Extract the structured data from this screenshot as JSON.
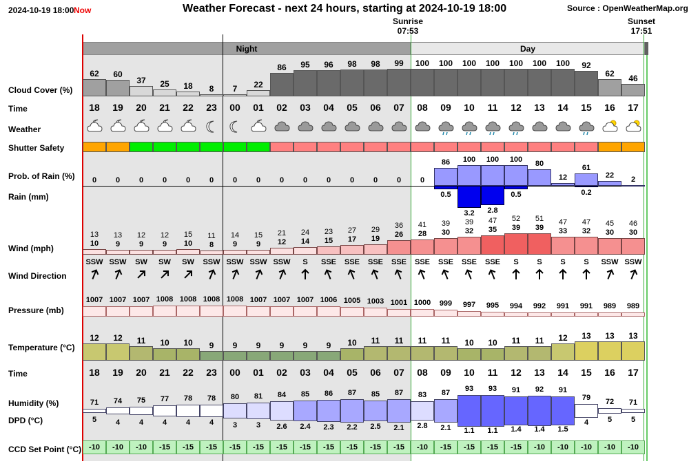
{
  "header": {
    "datetime": "2024-10-19 18:00",
    "now": "Now",
    "title": "Weather Forecast - next 24 hours, starting at 2024-10-19 18:00",
    "source": "Source : OpenWeatherMap.org",
    "sunrise_label": "Sunrise",
    "sunrise_time": "07:53",
    "sunset_label": "Sunset",
    "sunset_time": "17:51",
    "night_label": "Night",
    "day_label": "Day"
  },
  "labels": {
    "cloud": "Cloud Cover (%)",
    "time": "Time",
    "weather": "Weather",
    "shutter": "Shutter Safety",
    "prob": "Prob. of Rain (%)",
    "rain": "Rain (mm)",
    "wind": "Wind (mph)",
    "winddir": "Wind Direction",
    "pressure": "Pressure (mb)",
    "temp": "Temperature (°C)",
    "time2": "Time",
    "humidity": "Humidity (%)",
    "dpd": "DPD (°C)",
    "ccd": "CCD Set Point (°C)"
  },
  "colors": {
    "safe": "#00ee00",
    "warn": "#ffa500",
    "unsafe": "#ff8080",
    "cloud": "#6a6a6a",
    "night": "#e5e5e5"
  },
  "hours": [
    "18",
    "19",
    "20",
    "21",
    "22",
    "23",
    "00",
    "01",
    "02",
    "03",
    "04",
    "05",
    "06",
    "07",
    "08",
    "09",
    "10",
    "11",
    "12",
    "13",
    "14",
    "15",
    "16",
    "17"
  ],
  "cloud": [
    62,
    60,
    37,
    25,
    18,
    8,
    7,
    22,
    86,
    95,
    96,
    98,
    98,
    99,
    100,
    100,
    100,
    100,
    100,
    100,
    100,
    92,
    62,
    46
  ],
  "weather_icons": [
    "partly-cloudy-night-icon",
    "partly-cloudy-night-icon",
    "partly-cloudy-night-icon",
    "partly-cloudy-night-icon",
    "partly-cloudy-night-icon",
    "moon-icon",
    "moon-icon",
    "partly-cloudy-night-icon",
    "cloud-icon",
    "cloud-icon",
    "cloud-icon",
    "cloud-icon",
    "cloud-icon",
    "cloud-icon",
    "cloud-icon",
    "rain-icon",
    "rain-icon",
    "rain-icon",
    "rain-icon",
    "cloud-icon",
    "cloud-icon",
    "rain-icon",
    "partly-sunny-icon",
    "partly-sunny-icon"
  ],
  "shutter": [
    "warn",
    "warn",
    "safe",
    "safe",
    "safe",
    "safe",
    "safe",
    "safe",
    "unsafe",
    "unsafe",
    "unsafe",
    "unsafe",
    "unsafe",
    "unsafe",
    "unsafe",
    "unsafe",
    "unsafe",
    "unsafe",
    "unsafe",
    "unsafe",
    "unsafe",
    "unsafe",
    "warn",
    "warn"
  ],
  "prob_rain": [
    0,
    0,
    0,
    0,
    0,
    0,
    0,
    0,
    0,
    0,
    0,
    0,
    0,
    0,
    0,
    86,
    100,
    100,
    100,
    80,
    12,
    61,
    22,
    2
  ],
  "rain_mm": [
    null,
    null,
    null,
    null,
    null,
    null,
    null,
    null,
    null,
    null,
    null,
    null,
    null,
    null,
    null,
    "0.5",
    "3.2",
    "2.8",
    "0.5",
    null,
    null,
    "0.2",
    null,
    null
  ],
  "wind_gust": [
    13,
    13,
    12,
    12,
    15,
    11,
    14,
    15,
    21,
    24,
    23,
    27,
    29,
    36,
    41,
    39,
    39,
    47,
    52,
    51,
    47,
    47,
    45,
    46
  ],
  "wind_speed": [
    10,
    9,
    9,
    9,
    10,
    8,
    9,
    9,
    12,
    14,
    15,
    17,
    19,
    26,
    28,
    30,
    32,
    35,
    39,
    39,
    33,
    32,
    30,
    30
  ],
  "wind_dir": [
    "SSW",
    "SSW",
    "SW",
    "SW",
    "SW",
    "SSW",
    "SSW",
    "SSW",
    "SSW",
    "S",
    "SSE",
    "SSE",
    "SSE",
    "SSE",
    "SSE",
    "SSE",
    "SSE",
    "SSE",
    "S",
    "S",
    "S",
    "S",
    "SSW",
    "SSW"
  ],
  "wind_deg": [
    202,
    202,
    225,
    225,
    225,
    202,
    202,
    202,
    202,
    180,
    158,
    158,
    158,
    158,
    158,
    158,
    158,
    158,
    180,
    180,
    180,
    180,
    202,
    202
  ],
  "pressure": [
    1007,
    1007,
    1007,
    1008,
    1008,
    1008,
    1008,
    1007,
    1007,
    1007,
    1006,
    1005,
    1003,
    1001,
    1000,
    999,
    997,
    995,
    994,
    992,
    991,
    991,
    989,
    989
  ],
  "temperature": [
    12,
    12,
    11,
    10,
    10,
    9,
    9,
    9,
    9,
    9,
    9,
    10,
    11,
    11,
    11,
    11,
    10,
    10,
    11,
    11,
    12,
    13,
    13,
    13
  ],
  "humidity": [
    71,
    74,
    75,
    77,
    78,
    78,
    80,
    81,
    84,
    85,
    86,
    87,
    85,
    87,
    83,
    87,
    93,
    93,
    91,
    92,
    91,
    79,
    72,
    71
  ],
  "dpd": [
    "5",
    "4",
    "4",
    "4",
    "4",
    "4",
    "3",
    "3",
    "2.6",
    "2.4",
    "2.3",
    "2.2",
    "2.5",
    "2.1",
    "2.8",
    "2.1",
    "1.1",
    "1.1",
    "1.4",
    "1.4",
    "1.5",
    "4",
    "5",
    "5"
  ],
  "ccd": [
    -10,
    -10,
    -10,
    -15,
    -15,
    -15,
    -15,
    -15,
    -15,
    -15,
    -15,
    -15,
    -15,
    -15,
    -10,
    -15,
    -15,
    -15,
    -15,
    -10,
    -10,
    -10,
    -10,
    -10
  ]
}
